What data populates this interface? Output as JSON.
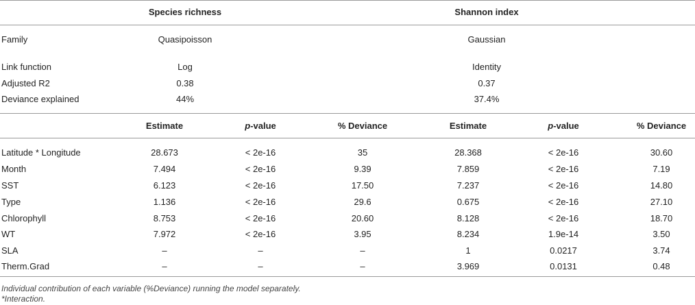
{
  "group_headers": {
    "species_richness": "Species richness",
    "shannon_index": "Shannon index"
  },
  "model_info": [
    {
      "label": "Family",
      "species": "Quasipoisson",
      "shannon": "Gaussian"
    },
    {
      "label": "Link function",
      "species": "Log",
      "shannon": "Identity"
    },
    {
      "label": "Adjusted R2",
      "species": "0.38",
      "shannon": "0.37"
    },
    {
      "label": "Deviance explained",
      "species": "44%",
      "shannon": "37.4%"
    }
  ],
  "column_headers": {
    "estimate": "Estimate",
    "p_italic": "p",
    "p_rest": "-value",
    "deviance": "% Deviance"
  },
  "rows": [
    {
      "variable": "Latitude * Longitude",
      "s_est": "28.673",
      "s_p": "< 2e-16",
      "s_dev": "35",
      "h_est": "28.368",
      "h_p": "< 2e-16",
      "h_dev": "30.60"
    },
    {
      "variable": "Month",
      "s_est": "7.494",
      "s_p": "< 2e-16",
      "s_dev": "9.39",
      "h_est": "7.859",
      "h_p": "< 2e-16",
      "h_dev": "7.19"
    },
    {
      "variable": "SST",
      "s_est": "6.123",
      "s_p": "< 2e-16",
      "s_dev": "17.50",
      "h_est": "7.237",
      "h_p": "< 2e-16",
      "h_dev": "14.80"
    },
    {
      "variable": "Type",
      "s_est": "1.136",
      "s_p": "< 2e-16",
      "s_dev": "29.6",
      "h_est": "0.675",
      "h_p": "< 2e-16",
      "h_dev": "27.10"
    },
    {
      "variable": "Chlorophyll",
      "s_est": "8.753",
      "s_p": "< 2e-16",
      "s_dev": "20.60",
      "h_est": "8.128",
      "h_p": "< 2e-16",
      "h_dev": "18.70"
    },
    {
      "variable": "WT",
      "s_est": "7.972",
      "s_p": "< 2e-16",
      "s_dev": "3.95",
      "h_est": "8.234",
      "h_p": "1.9e-14",
      "h_dev": "3.50"
    },
    {
      "variable": "SLA",
      "s_est": "–",
      "s_p": "–",
      "s_dev": "–",
      "h_est": "1",
      "h_p": "0.0217",
      "h_dev": "3.74"
    },
    {
      "variable": "Therm.Grad",
      "s_est": "–",
      "s_p": "–",
      "s_dev": "–",
      "h_est": "3.969",
      "h_p": "0.0131",
      "h_dev": "0.48"
    }
  ],
  "footnotes": [
    "Individual contribution of each variable (%Deviance) running the model separately.",
    "*Interaction."
  ]
}
